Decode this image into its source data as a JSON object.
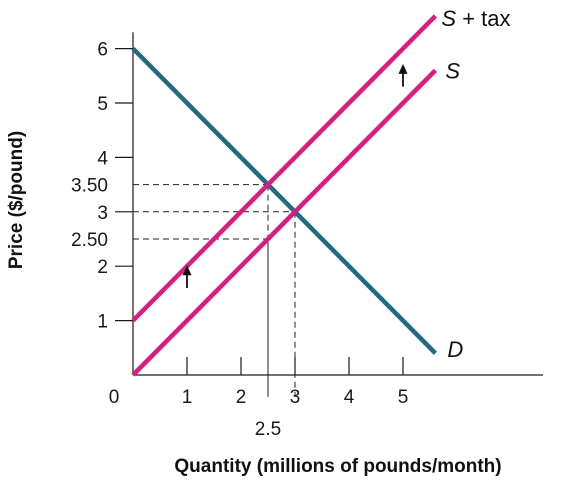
{
  "chart_data": {
    "type": "line",
    "xlabel": "Quantity (millions of pounds/month)",
    "ylabel": "Price ($/pound)",
    "xlim": [
      0,
      5.8
    ],
    "ylim": [
      0,
      6.3
    ],
    "x_ticks": [
      {
        "value": 0,
        "label": "0"
      },
      {
        "value": 1,
        "label": "1"
      },
      {
        "value": 2,
        "label": "2"
      },
      {
        "value": 3,
        "label": "3"
      },
      {
        "value": 4,
        "label": "4"
      },
      {
        "value": 5,
        "label": "5"
      }
    ],
    "x_extra_ticks": [
      {
        "value": 2.5,
        "label": "2.5"
      }
    ],
    "y_ticks": [
      {
        "value": 1,
        "label": "1"
      },
      {
        "value": 2,
        "label": "2"
      },
      {
        "value": 3,
        "label": "3"
      },
      {
        "value": 4,
        "label": "4"
      },
      {
        "value": 5,
        "label": "5"
      },
      {
        "value": 6,
        "label": "6"
      }
    ],
    "y_extra_ticks": [
      {
        "value": 2.5,
        "label": "2.50"
      },
      {
        "value": 3.5,
        "label": "3.50"
      }
    ],
    "series": [
      {
        "name": "D",
        "color": "#1f6a86",
        "x": [
          0,
          5.6
        ],
        "y": [
          6,
          0.4
        ]
      },
      {
        "name": "S",
        "color": "#e0197d",
        "x": [
          0,
          5.6
        ],
        "y": [
          0,
          5.6
        ]
      },
      {
        "name": "S + tax",
        "color": "#e0197d",
        "x": [
          0,
          5.6
        ],
        "y": [
          1,
          6.6
        ]
      }
    ],
    "reference_lines": [
      {
        "x": 2.5,
        "y": 3.5
      },
      {
        "x": 2.5,
        "y": 2.5
      },
      {
        "x": 3,
        "y": 3
      }
    ],
    "arrows": [
      {
        "x": 1,
        "from_y": 1.6,
        "to_y": 2.0,
        "direction": "up"
      },
      {
        "x": 5,
        "from_y": 5.3,
        "to_y": 5.7,
        "direction": "up"
      }
    ],
    "grid": false,
    "legend": "none"
  }
}
